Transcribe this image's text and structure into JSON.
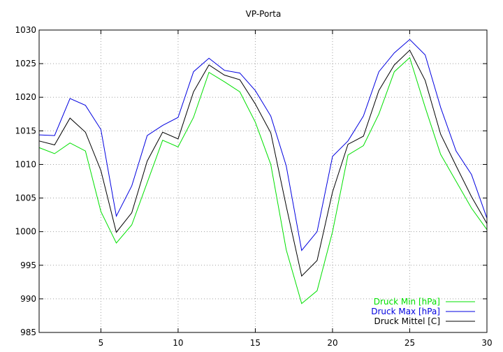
{
  "chart_data": {
    "type": "line",
    "title": "VP-Porta",
    "xlabel": "",
    "ylabel": "",
    "xlim": [
      1,
      30
    ],
    "ylim": [
      985,
      1030
    ],
    "xticks": [
      5,
      10,
      15,
      20,
      25,
      30
    ],
    "yticks": [
      985,
      990,
      995,
      1000,
      1005,
      1010,
      1015,
      1020,
      1025,
      1030
    ],
    "grid": true,
    "legend_position": "bottom-right",
    "x": [
      1,
      2,
      3,
      4,
      5,
      6,
      7,
      8,
      9,
      10,
      11,
      12,
      13,
      14,
      15,
      16,
      17,
      18,
      19,
      20,
      21,
      22,
      23,
      24,
      25,
      26,
      27,
      28,
      29,
      30
    ],
    "series": [
      {
        "name": "Druck Min [hPa]",
        "color": "#00e000",
        "values": [
          1012.5,
          1011.6,
          1013.2,
          1012.0,
          1003.0,
          998.3,
          1001.0,
          1007.3,
          1013.6,
          1012.6,
          1017.0,
          1023.7,
          1022.3,
          1020.8,
          1016.3,
          1010.0,
          997.3,
          989.3,
          991.2,
          1000.0,
          1011.4,
          1012.8,
          1017.5,
          1023.8,
          1025.9,
          1018.5,
          1011.5,
          1007.5,
          1003.5,
          1000.3
        ]
      },
      {
        "name": "Druck Max [hPa]",
        "color": "#0000e0",
        "values": [
          1014.4,
          1014.3,
          1019.8,
          1018.8,
          1015.2,
          1002.3,
          1006.8,
          1014.3,
          1015.8,
          1017.0,
          1023.8,
          1025.8,
          1024.0,
          1023.6,
          1021.0,
          1017.2,
          1009.8,
          997.2,
          1000.0,
          1011.2,
          1013.5,
          1017.2,
          1023.8,
          1026.6,
          1028.6,
          1026.3,
          1018.5,
          1012.0,
          1008.5,
          1002.0
        ]
      },
      {
        "name": "Druck Mittel [C]",
        "color": "#000000",
        "values": [
          1013.5,
          1012.9,
          1016.9,
          1014.8,
          1009.1,
          999.9,
          1002.8,
          1010.5,
          1014.8,
          1013.8,
          1020.8,
          1024.8,
          1023.3,
          1022.6,
          1019.0,
          1014.7,
          1003.8,
          993.4,
          995.7,
          1005.9,
          1013.0,
          1014.2,
          1021.0,
          1024.8,
          1027.0,
          1022.5,
          1014.5,
          1009.8,
          1005.2,
          1001.2
        ]
      }
    ]
  }
}
